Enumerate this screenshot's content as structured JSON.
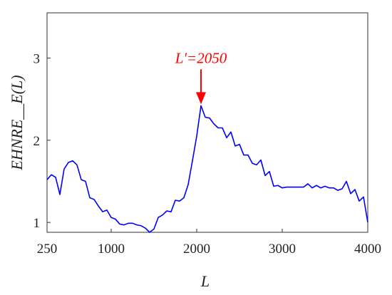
{
  "chart_data": {
    "type": "line",
    "xlabel": "L",
    "ylabel": "EHNRE__E(L)",
    "xlim": [
      250,
      4000
    ],
    "ylim": [
      0.88,
      3.55
    ],
    "xticks": [
      250,
      1000,
      2000,
      3000,
      4000
    ],
    "yticks": [
      1,
      2,
      3
    ],
    "grid": false,
    "series": [
      {
        "color": "#0000ff",
        "x": [
          250,
          300,
          350,
          400,
          450,
          500,
          550,
          600,
          650,
          700,
          750,
          800,
          850,
          900,
          950,
          1000,
          1050,
          1100,
          1150,
          1200,
          1250,
          1300,
          1350,
          1400,
          1450,
          1500,
          1550,
          1600,
          1650,
          1700,
          1750,
          1800,
          1850,
          1900,
          1950,
          2000,
          2050,
          2100,
          2150,
          2200,
          2250,
          2300,
          2350,
          2400,
          2450,
          2500,
          2550,
          2600,
          2650,
          2700,
          2750,
          2800,
          2850,
          2900,
          2950,
          3000,
          3050,
          3100,
          3150,
          3200,
          3250,
          3300,
          3350,
          3400,
          3450,
          3500,
          3550,
          3600,
          3650,
          3700,
          3750,
          3800,
          3850,
          3900,
          3950,
          4000
        ],
        "values": [
          1.52,
          1.58,
          1.55,
          1.34,
          1.65,
          1.73,
          1.75,
          1.7,
          1.52,
          1.5,
          1.3,
          1.28,
          1.2,
          1.13,
          1.15,
          1.06,
          1.04,
          0.98,
          0.97,
          0.99,
          0.99,
          0.97,
          0.96,
          0.93,
          0.88,
          0.92,
          1.06,
          1.09,
          1.14,
          1.13,
          1.27,
          1.26,
          1.3,
          1.46,
          1.75,
          2.05,
          2.42,
          2.28,
          2.27,
          2.2,
          2.15,
          2.15,
          2.03,
          2.1,
          1.93,
          1.95,
          1.82,
          1.82,
          1.72,
          1.7,
          1.76,
          1.57,
          1.62,
          1.44,
          1.45,
          1.42,
          1.43,
          1.43,
          1.43,
          1.43,
          1.43,
          1.47,
          1.42,
          1.45,
          1.42,
          1.44,
          1.42,
          1.42,
          1.39,
          1.41,
          1.5,
          1.35,
          1.4,
          1.26,
          1.31,
          1.0
        ]
      }
    ],
    "annotations": [
      {
        "text": "L′=2050",
        "x": 2050,
        "y": 2.42,
        "color": "#ff0000"
      }
    ]
  }
}
